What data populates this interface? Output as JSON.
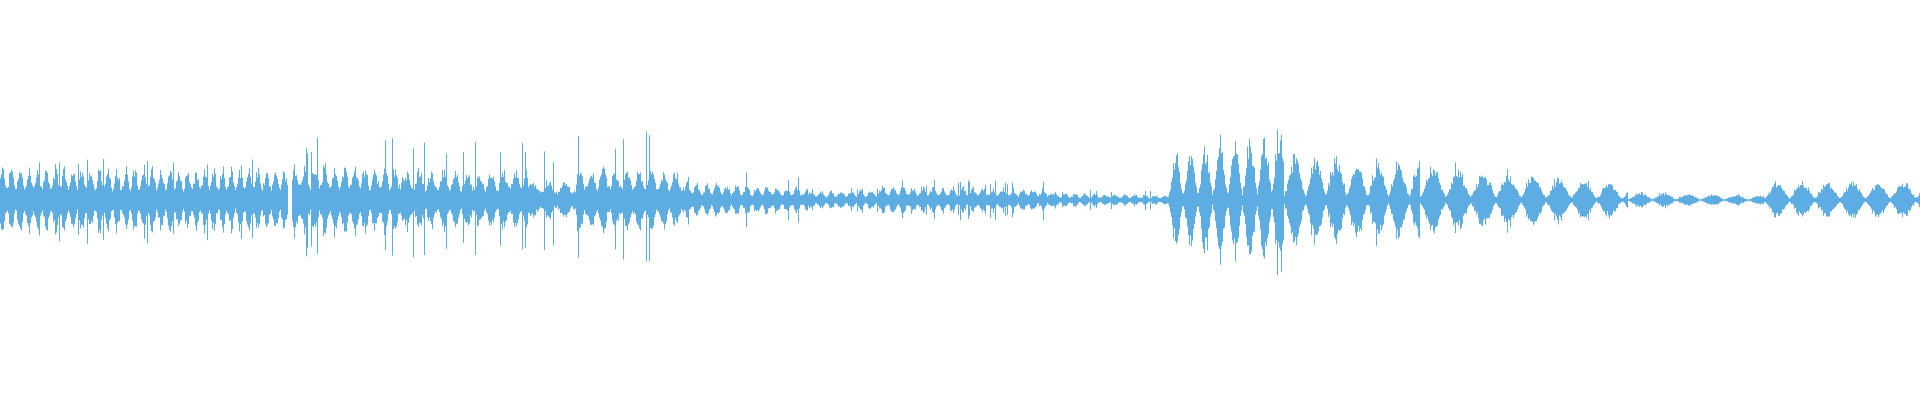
{
  "chart_data": {
    "type": "area",
    "description_kind": "audio-waveform",
    "title": "",
    "xlabel": "",
    "ylabel": "",
    "ylim": [
      -1,
      1
    ],
    "grid": false,
    "legend": "none",
    "color": "#5dade2",
    "frames_total": 480,
    "segments": [
      {
        "start": 0,
        "end": 72,
        "amp": 0.4,
        "amp_end": 0.38,
        "peak": 0.52,
        "burst_period": 2.2
      },
      {
        "start": 73,
        "end": 101,
        "amp": 0.45,
        "amp_end": 0.4,
        "peak": 0.72,
        "burst_period": 2.5
      },
      {
        "start": 101,
        "end": 132,
        "amp": 0.36,
        "amp_end": 0.36,
        "peak": 0.72,
        "burst_period": 3
      },
      {
        "start": 132,
        "end": 144,
        "amp": 0.24,
        "amp_end": 0.24,
        "peak": 0.6,
        "burst_period": 4
      },
      {
        "start": 144,
        "end": 171,
        "amp": 0.4,
        "amp_end": 0.34,
        "peak": 0.78,
        "burst_period": 3
      },
      {
        "start": 171,
        "end": 202,
        "amp": 0.22,
        "amp_end": 0.15,
        "peak": 0.32,
        "burst_period": 2.5
      },
      {
        "start": 202,
        "end": 220,
        "amp": 0.11,
        "amp_end": 0.12,
        "peak": 0.16,
        "burst_period": 2.5
      },
      {
        "start": 220,
        "end": 263,
        "amp": 0.18,
        "amp_end": 0.13,
        "peak": 0.24,
        "burst_period": 2.5
      },
      {
        "start": 263,
        "end": 292,
        "amp": 0.09,
        "amp_end": 0.06,
        "peak": 0.12,
        "burst_period": 2.5
      },
      {
        "start": 292,
        "end": 321,
        "amp": 0.5,
        "amp_end": 0.78,
        "peak": 0.85,
        "burst_period": 3.7,
        "pulsed": true
      },
      {
        "start": 321,
        "end": 355,
        "amp": 0.5,
        "amp_end": 0.42,
        "peak": 0.55,
        "burst_period": 5.2,
        "pulsed": true
      },
      {
        "start": 355,
        "end": 407,
        "amp": 0.38,
        "amp_end": 0.18,
        "peak": 0.42,
        "burst_period": 6.3,
        "pulsed": true
      },
      {
        "start": 407,
        "end": 441,
        "amp": 0.09,
        "amp_end": 0.05,
        "peak": 0.1,
        "burst_period": 6,
        "pulsed": true
      },
      {
        "start": 441,
        "end": 480,
        "amp": 0.2,
        "amp_end": 0.2,
        "peak": 0.22,
        "burst_period": 6.3,
        "pulsed": true
      }
    ]
  }
}
